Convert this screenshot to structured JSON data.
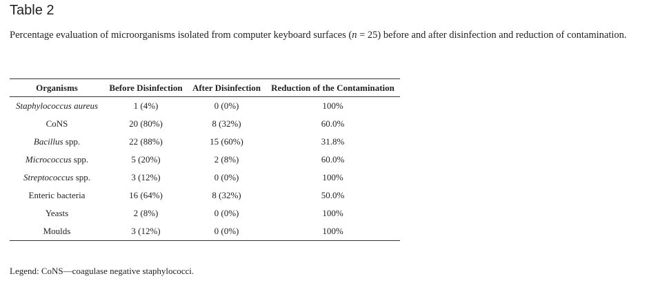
{
  "table_label": "Table 2",
  "caption": {
    "before": "Percentage evaluation of microorganisms isolated from computer keyboard surfaces (",
    "n_symbol": "n",
    "after": " = 25) before and after disinfection and reduction of contamination."
  },
  "columns": [
    "Organisms",
    "Before Disinfection",
    "After Disinfection",
    "Reduction of the Contamination"
  ],
  "rows": [
    {
      "organism": "Staphylococcus aureus",
      "italic": true,
      "genus": "",
      "suffix": "",
      "before": "1 (4%)",
      "after": "0 (0%)",
      "reduction": "100%"
    },
    {
      "organism": "CoNS",
      "italic": false,
      "genus": "",
      "suffix": "",
      "before": "20 (80%)",
      "after": "8 (32%)",
      "reduction": "60.0%"
    },
    {
      "organism": "",
      "italic": false,
      "genus": "Bacillus",
      "suffix": " spp.",
      "before": "22 (88%)",
      "after": "15 (60%)",
      "reduction": "31.8%"
    },
    {
      "organism": "",
      "italic": false,
      "genus": "Micrococcus",
      "suffix": " spp.",
      "before": "5 (20%)",
      "after": "2 (8%)",
      "reduction": "60.0%"
    },
    {
      "organism": "",
      "italic": false,
      "genus": "Streptococcus",
      "suffix": " spp.",
      "before": "3 (12%)",
      "after": "0 (0%)",
      "reduction": "100%"
    },
    {
      "organism": "Enteric bacteria",
      "italic": false,
      "genus": "",
      "suffix": "",
      "before": "16 (64%)",
      "after": "8 (32%)",
      "reduction": "50.0%"
    },
    {
      "organism": "Yeasts",
      "italic": false,
      "genus": "",
      "suffix": "",
      "before": "2 (8%)",
      "after": "0 (0%)",
      "reduction": "100%"
    },
    {
      "organism": "Moulds",
      "italic": false,
      "genus": "",
      "suffix": "",
      "before": "3 (12%)",
      "after": "0 (0%)",
      "reduction": "100%"
    }
  ],
  "legend": "Legend: CoNS—coagulase negative staphylococci.",
  "colors": {
    "text": "#222222",
    "rules": "#333333",
    "background": "#ffffff"
  }
}
